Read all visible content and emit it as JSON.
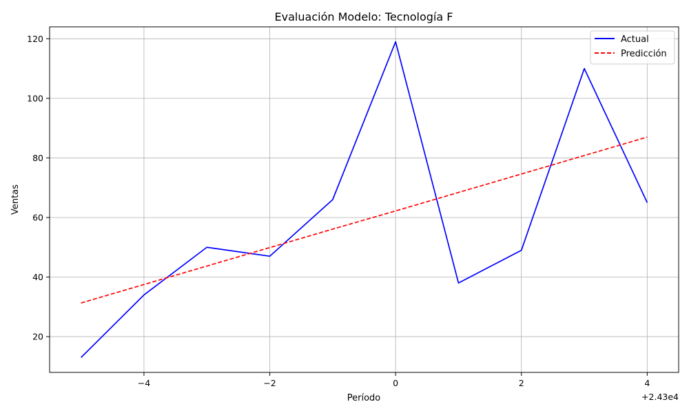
{
  "chart_data": {
    "type": "line",
    "title": "Evaluación Modelo: Tecnología F",
    "xlabel": "Período",
    "ylabel": "Ventas",
    "x_offset_label": "+2.43e4",
    "xlim": [
      -5.5,
      4.5
    ],
    "ylim": [
      8,
      124
    ],
    "x_ticks": [
      -4,
      -2,
      0,
      2,
      4
    ],
    "x_tick_labels": [
      "−4",
      "−2",
      "0",
      "2",
      "4"
    ],
    "y_ticks": [
      20,
      40,
      60,
      80,
      100,
      120
    ],
    "y_tick_labels": [
      "20",
      "40",
      "60",
      "80",
      "100",
      "120"
    ],
    "grid": true,
    "legend_position": "top-right",
    "x": [
      -5,
      -4,
      -3,
      -2,
      -1,
      0,
      1,
      2,
      3,
      4
    ],
    "series": [
      {
        "name": "Actual",
        "color": "#0000ff",
        "style": "solid",
        "values": [
          13,
          34,
          50,
          47,
          66,
          119,
          38,
          49,
          110,
          65
        ]
      },
      {
        "name": "Predicción",
        "color": "#ff0000",
        "style": "dashed",
        "values": [
          31.3,
          37.5,
          43.7,
          49.9,
          56.1,
          62.2,
          68.4,
          74.6,
          80.8,
          87.0
        ]
      }
    ]
  }
}
